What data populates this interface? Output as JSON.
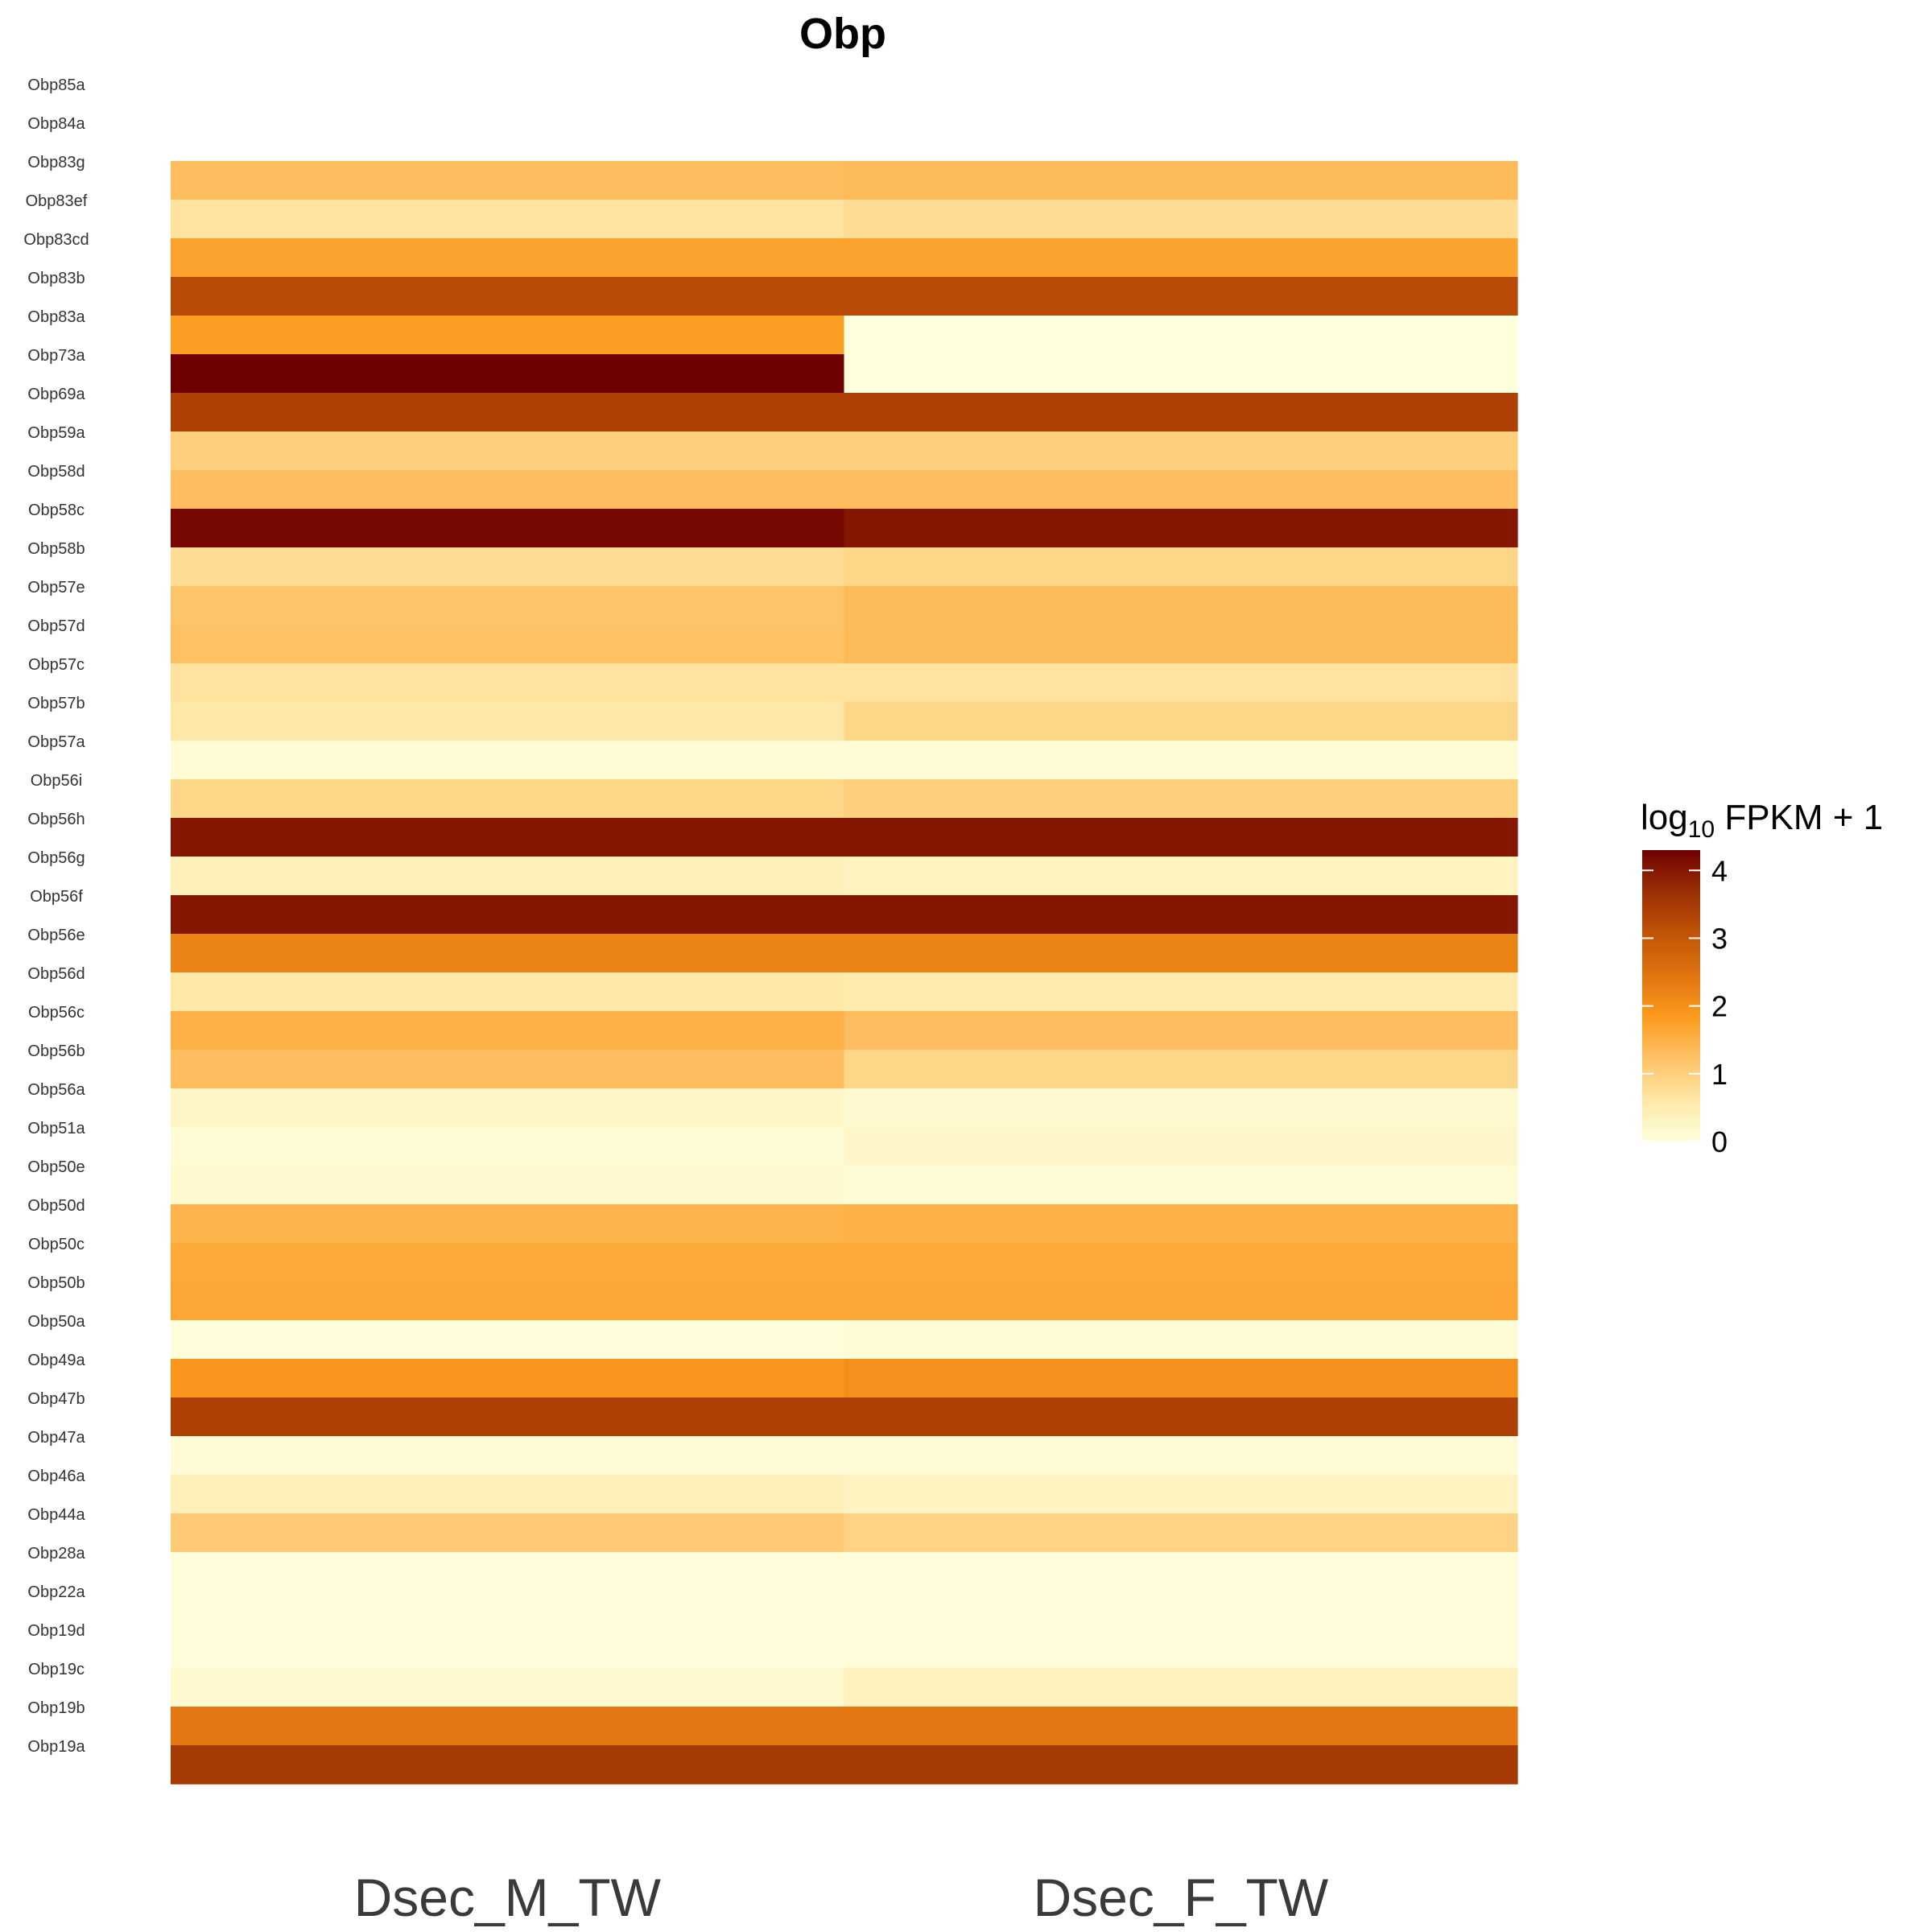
{
  "chart_data": {
    "type": "heatmap",
    "title": "Obp",
    "columns": [
      "Dsec_M_TW",
      "Dsec_F_TW"
    ],
    "rows": [
      "Obp85a",
      "Obp84a",
      "Obp83g",
      "Obp83ef",
      "Obp83cd",
      "Obp83b",
      "Obp83a",
      "Obp73a",
      "Obp69a",
      "Obp59a",
      "Obp58d",
      "Obp58c",
      "Obp58b",
      "Obp57e",
      "Obp57d",
      "Obp57c",
      "Obp57b",
      "Obp57a",
      "Obp56i",
      "Obp56h",
      "Obp56g",
      "Obp56f",
      "Obp56e",
      "Obp56d",
      "Obp56c",
      "Obp56b",
      "Obp56a",
      "Obp51a",
      "Obp50e",
      "Obp50d",
      "Obp50c",
      "Obp50b",
      "Obp50a",
      "Obp49a",
      "Obp47b",
      "Obp47a",
      "Obp46a",
      "Obp44a",
      "Obp28a",
      "Obp22a",
      "Obp19d",
      "Obp19c",
      "Obp19b",
      "Obp19a"
    ],
    "cell_values": [
      [
        1.3,
        1.35
      ],
      [
        0.7,
        0.8
      ],
      [
        1.7,
        1.7
      ],
      [
        3.2,
        3.2
      ],
      [
        1.8,
        0.0
      ],
      [
        4.3,
        0.0
      ],
      [
        3.4,
        3.4
      ],
      [
        1.0,
        1.0
      ],
      [
        1.3,
        1.3
      ],
      [
        4.2,
        4.0
      ],
      [
        0.8,
        0.9
      ],
      [
        1.2,
        1.35
      ],
      [
        1.25,
        1.35
      ],
      [
        0.7,
        0.7
      ],
      [
        0.6,
        0.9
      ],
      [
        0.1,
        0.1
      ],
      [
        0.9,
        1.0
      ],
      [
        4.0,
        4.0
      ],
      [
        0.4,
        0.3
      ],
      [
        4.0,
        4.0
      ],
      [
        2.2,
        2.2
      ],
      [
        0.6,
        0.55
      ],
      [
        1.5,
        1.3
      ],
      [
        1.3,
        0.9
      ],
      [
        0.25,
        0.15
      ],
      [
        0.1,
        0.2
      ],
      [
        0.15,
        0.1
      ],
      [
        1.45,
        1.5
      ],
      [
        1.6,
        1.6
      ],
      [
        1.65,
        1.65
      ],
      [
        0.05,
        0.1
      ],
      [
        1.9,
        2.0
      ],
      [
        3.4,
        3.4
      ],
      [
        0.1,
        0.1
      ],
      [
        0.4,
        0.3
      ],
      [
        1.1,
        0.95
      ],
      [
        0.05,
        0.05
      ],
      [
        0.05,
        0.05
      ],
      [
        0.05,
        0.05
      ],
      [
        0.15,
        0.35
      ],
      [
        2.4,
        2.4
      ],
      [
        3.5,
        3.5
      ]
    ],
    "cell_values_note": "values listed top-to-bottom for the 42 drawn bands; rows Obp85a and Obp84a have no tiles",
    "empty_rows": [
      "Obp85a",
      "Obp84a"
    ],
    "legend": {
      "title_main": "log",
      "title_sub": "10",
      "title_rest": " FPKM + 1",
      "ticks": [
        0,
        1,
        2,
        3,
        4
      ],
      "range": [
        0,
        4.3
      ],
      "colors": [
        "#ffffdd",
        "#fee7a6",
        "#fec266",
        "#fb9a1e",
        "#e07411",
        "#c05406",
        "#9a2f05",
        "#700000"
      ]
    }
  }
}
